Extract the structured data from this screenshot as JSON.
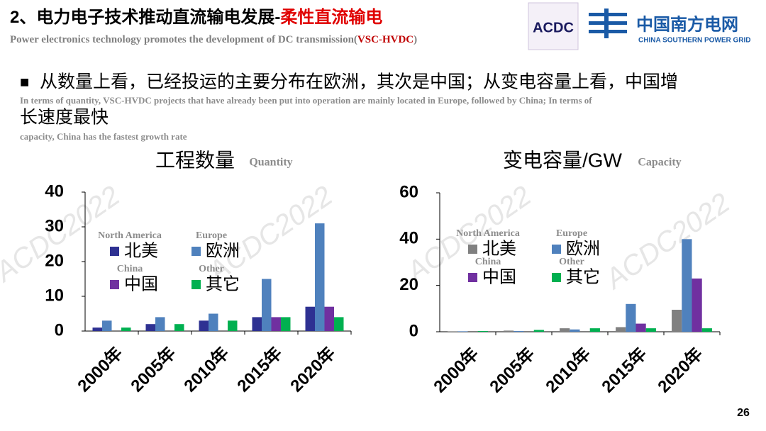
{
  "header": {
    "title_main": "2、电力电子技术推动直流输电发展-",
    "title_highlight": "柔性直流输电",
    "subtitle_main": "Power electronics technology promotes the development of  DC transmission(",
    "subtitle_highlight": "VSC-HVDC",
    "subtitle_end": ")"
  },
  "logos": {
    "event": "ACDC",
    "company": "中国南方电网",
    "company_en": "CHINA SOUTHERN POWER GRID"
  },
  "watermark": "ACDC2022",
  "bullet": {
    "marker": "■",
    "lines": [
      "从数量上看，已经投运的主要分布在欧洲，其次是中国；从变电容量上看，中国增",
      "长速度最快"
    ],
    "lines_en": [
      "In terms of quantity, VSC-HVDC projects that have already been put into operation are mainly located in Europe, followed by China; In terms of",
      "capacity, China has the fastest growth rate"
    ]
  },
  "page_number": "26",
  "chart_data": [
    {
      "type": "bar",
      "title": "工程数量",
      "title_en": "Quantity",
      "categories": [
        "2000年",
        "2005年",
        "2010年",
        "2015年",
        "2020年"
      ],
      "series": [
        {
          "name": "北美",
          "name_en": "North America",
          "color": "#2e3192",
          "values": [
            1,
            2,
            3,
            4,
            7
          ]
        },
        {
          "name": "欧洲",
          "name_en": "Europe",
          "color": "#4f81bd",
          "values": [
            3,
            4,
            5,
            15,
            31
          ]
        },
        {
          "name": "中国",
          "name_en": "China",
          "color": "#7030a0",
          "values": [
            0,
            0,
            0,
            4,
            7
          ]
        },
        {
          "name": "其它",
          "name_en": "Other",
          "color": "#00b050",
          "values": [
            1,
            2,
            3,
            4,
            4
          ]
        }
      ],
      "ylim": [
        0,
        40
      ],
      "yticks": [
        0,
        10,
        20,
        30,
        40
      ]
    },
    {
      "type": "bar",
      "title": "变电容量/GW",
      "title_en": "Capacity",
      "categories": [
        "2000年",
        "2005年",
        "2010年",
        "2015年",
        "2020年"
      ],
      "series": [
        {
          "name": "北美",
          "name_en": "North America",
          "color": "#808080",
          "values": [
            0.2,
            0.5,
            1.5,
            2,
            9.5
          ]
        },
        {
          "name": "欧洲",
          "name_en": "Europe",
          "color": "#4f81bd",
          "values": [
            0.2,
            0.3,
            1,
            12,
            40
          ]
        },
        {
          "name": "中国",
          "name_en": "China",
          "color": "#7030a0",
          "values": [
            0,
            0,
            0,
            3.5,
            23
          ]
        },
        {
          "name": "其它",
          "name_en": "Other",
          "color": "#00b050",
          "values": [
            0.3,
            0.8,
            1.5,
            1.5,
            1.5
          ]
        }
      ],
      "ylim": [
        0,
        60
      ],
      "yticks": [
        0,
        20,
        40,
        60
      ]
    }
  ]
}
